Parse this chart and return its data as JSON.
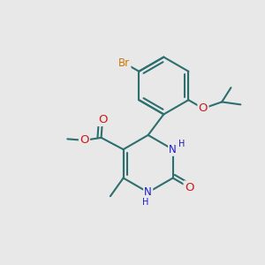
{
  "background_color": "#e8e8e8",
  "bond_color": "#2d6e6e",
  "bond_width": 1.5,
  "atom_colors": {
    "C": "#2d6e6e",
    "N": "#1a1acc",
    "O": "#cc1a1a",
    "Br": "#cc7700",
    "H": "#2d6e6e"
  },
  "font_size": 8.5,
  "fig_size": [
    3.0,
    3.0
  ],
  "dpi": 100,
  "xlim": [
    0,
    10
  ],
  "ylim": [
    0,
    10
  ]
}
